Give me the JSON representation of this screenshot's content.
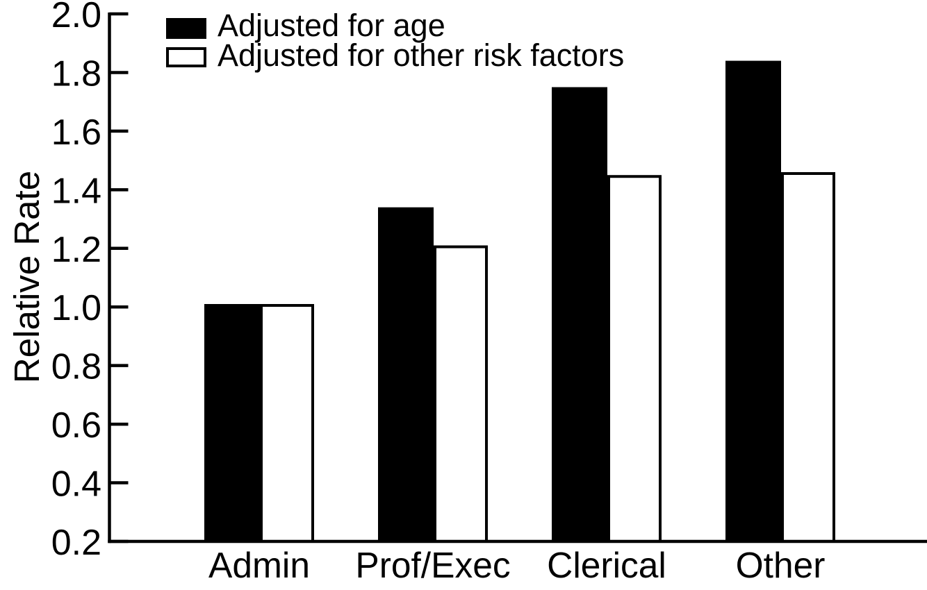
{
  "chart_data": {
    "type": "bar",
    "title": "",
    "xlabel": "",
    "ylabel": "Relative Rate",
    "categories": [
      "Admin",
      "Prof/Exec",
      "Clerical",
      "Other"
    ],
    "series": [
      {
        "name": "Adjusted for age",
        "fill": "#000000",
        "outline": "#000000",
        "values": [
          1.01,
          1.34,
          1.75,
          1.84
        ]
      },
      {
        "name": "Adjusted for other risk factors",
        "fill": "#ffffff",
        "outline": "#000000",
        "values": [
          1.01,
          1.21,
          1.45,
          1.46
        ]
      }
    ],
    "ylim": [
      0.2,
      2.0
    ],
    "ytick_step": 0.2,
    "ytick_labels": [
      "2.0",
      "1.8",
      "1.6",
      "1.4",
      "1.2",
      "1.0",
      "0.8",
      "0.6",
      "0.4",
      "0.2"
    ],
    "grid": false,
    "legend_position": "top-left-inside",
    "axis_color": "#000000",
    "background_color": "#ffffff"
  }
}
